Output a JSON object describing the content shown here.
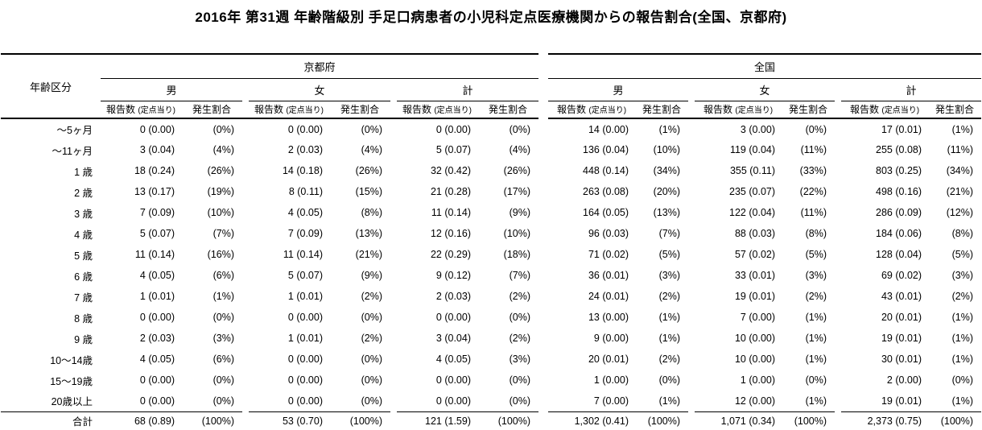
{
  "title": "2016年 第31週 年齢階級別 手足口病患者の小児科定点医療機関からの報告割合(全国、京都府)",
  "colors": {
    "background": "#ffffff",
    "text": "#000000",
    "rule": "#000000"
  },
  "table": {
    "age_header": "年齢区分",
    "regions": [
      {
        "label": "京都府"
      },
      {
        "label": "全国"
      }
    ],
    "genders": [
      "男",
      "女",
      "計"
    ],
    "sub_count": "報告数",
    "sub_count_paren": "(定点当り)",
    "sub_ratio": "発生割合",
    "rows": [
      {
        "age": "～5ヶ月",
        "cells": [
          "0 (0.00)",
          "(0%)",
          "0 (0.00)",
          "(0%)",
          "0 (0.00)",
          "(0%)",
          "14 (0.00)",
          "(1%)",
          "3 (0.00)",
          "(0%)",
          "17 (0.01)",
          "(1%)"
        ]
      },
      {
        "age": "～11ヶ月",
        "cells": [
          "3 (0.04)",
          "(4%)",
          "2 (0.03)",
          "(4%)",
          "5 (0.07)",
          "(4%)",
          "136 (0.04)",
          "(10%)",
          "119 (0.04)",
          "(11%)",
          "255 (0.08)",
          "(11%)"
        ]
      },
      {
        "age": "1 歳",
        "cells": [
          "18 (0.24)",
          "(26%)",
          "14 (0.18)",
          "(26%)",
          "32 (0.42)",
          "(26%)",
          "448 (0.14)",
          "(34%)",
          "355 (0.11)",
          "(33%)",
          "803 (0.25)",
          "(34%)"
        ]
      },
      {
        "age": "2 歳",
        "cells": [
          "13 (0.17)",
          "(19%)",
          "8 (0.11)",
          "(15%)",
          "21 (0.28)",
          "(17%)",
          "263 (0.08)",
          "(20%)",
          "235 (0.07)",
          "(22%)",
          "498 (0.16)",
          "(21%)"
        ]
      },
      {
        "age": "3 歳",
        "cells": [
          "7 (0.09)",
          "(10%)",
          "4 (0.05)",
          "(8%)",
          "11 (0.14)",
          "(9%)",
          "164 (0.05)",
          "(13%)",
          "122 (0.04)",
          "(11%)",
          "286 (0.09)",
          "(12%)"
        ]
      },
      {
        "age": "4 歳",
        "cells": [
          "5 (0.07)",
          "(7%)",
          "7 (0.09)",
          "(13%)",
          "12 (0.16)",
          "(10%)",
          "96 (0.03)",
          "(7%)",
          "88 (0.03)",
          "(8%)",
          "184 (0.06)",
          "(8%)"
        ]
      },
      {
        "age": "5 歳",
        "cells": [
          "11 (0.14)",
          "(16%)",
          "11 (0.14)",
          "(21%)",
          "22 (0.29)",
          "(18%)",
          "71 (0.02)",
          "(5%)",
          "57 (0.02)",
          "(5%)",
          "128 (0.04)",
          "(5%)"
        ]
      },
      {
        "age": "6 歳",
        "cells": [
          "4 (0.05)",
          "(6%)",
          "5 (0.07)",
          "(9%)",
          "9 (0.12)",
          "(7%)",
          "36 (0.01)",
          "(3%)",
          "33 (0.01)",
          "(3%)",
          "69 (0.02)",
          "(3%)"
        ]
      },
      {
        "age": "7 歳",
        "cells": [
          "1 (0.01)",
          "(1%)",
          "1 (0.01)",
          "(2%)",
          "2 (0.03)",
          "(2%)",
          "24 (0.01)",
          "(2%)",
          "19 (0.01)",
          "(2%)",
          "43 (0.01)",
          "(2%)"
        ]
      },
      {
        "age": "8 歳",
        "cells": [
          "0 (0.00)",
          "(0%)",
          "0 (0.00)",
          "(0%)",
          "0 (0.00)",
          "(0%)",
          "13 (0.00)",
          "(1%)",
          "7 (0.00)",
          "(1%)",
          "20 (0.01)",
          "(1%)"
        ]
      },
      {
        "age": "9 歳",
        "cells": [
          "2 (0.03)",
          "(3%)",
          "1 (0.01)",
          "(2%)",
          "3 (0.04)",
          "(2%)",
          "9 (0.00)",
          "(1%)",
          "10 (0.00)",
          "(1%)",
          "19 (0.01)",
          "(1%)"
        ]
      },
      {
        "age": "10～14歳",
        "cells": [
          "4 (0.05)",
          "(6%)",
          "0 (0.00)",
          "(0%)",
          "4 (0.05)",
          "(3%)",
          "20 (0.01)",
          "(2%)",
          "10 (0.00)",
          "(1%)",
          "30 (0.01)",
          "(1%)"
        ]
      },
      {
        "age": "15～19歳",
        "cells": [
          "0 (0.00)",
          "(0%)",
          "0 (0.00)",
          "(0%)",
          "0 (0.00)",
          "(0%)",
          "1 (0.00)",
          "(0%)",
          "1 (0.00)",
          "(0%)",
          "2 (0.00)",
          "(0%)"
        ]
      },
      {
        "age": "20歳以上",
        "cells": [
          "0 (0.00)",
          "(0%)",
          "0 (0.00)",
          "(0%)",
          "0 (0.00)",
          "(0%)",
          "7 (0.00)",
          "(1%)",
          "12 (0.00)",
          "(1%)",
          "19 (0.01)",
          "(1%)"
        ]
      }
    ],
    "total": {
      "age": "合計",
      "cells": [
        "68 (0.89)",
        "(100%)",
        "53 (0.70)",
        "(100%)",
        "121 (1.59)",
        "(100%)",
        "1,302 (0.41)",
        "(100%)",
        "1,071 (0.34)",
        "(100%)",
        "2,373 (0.75)",
        "(100%)"
      ]
    }
  }
}
